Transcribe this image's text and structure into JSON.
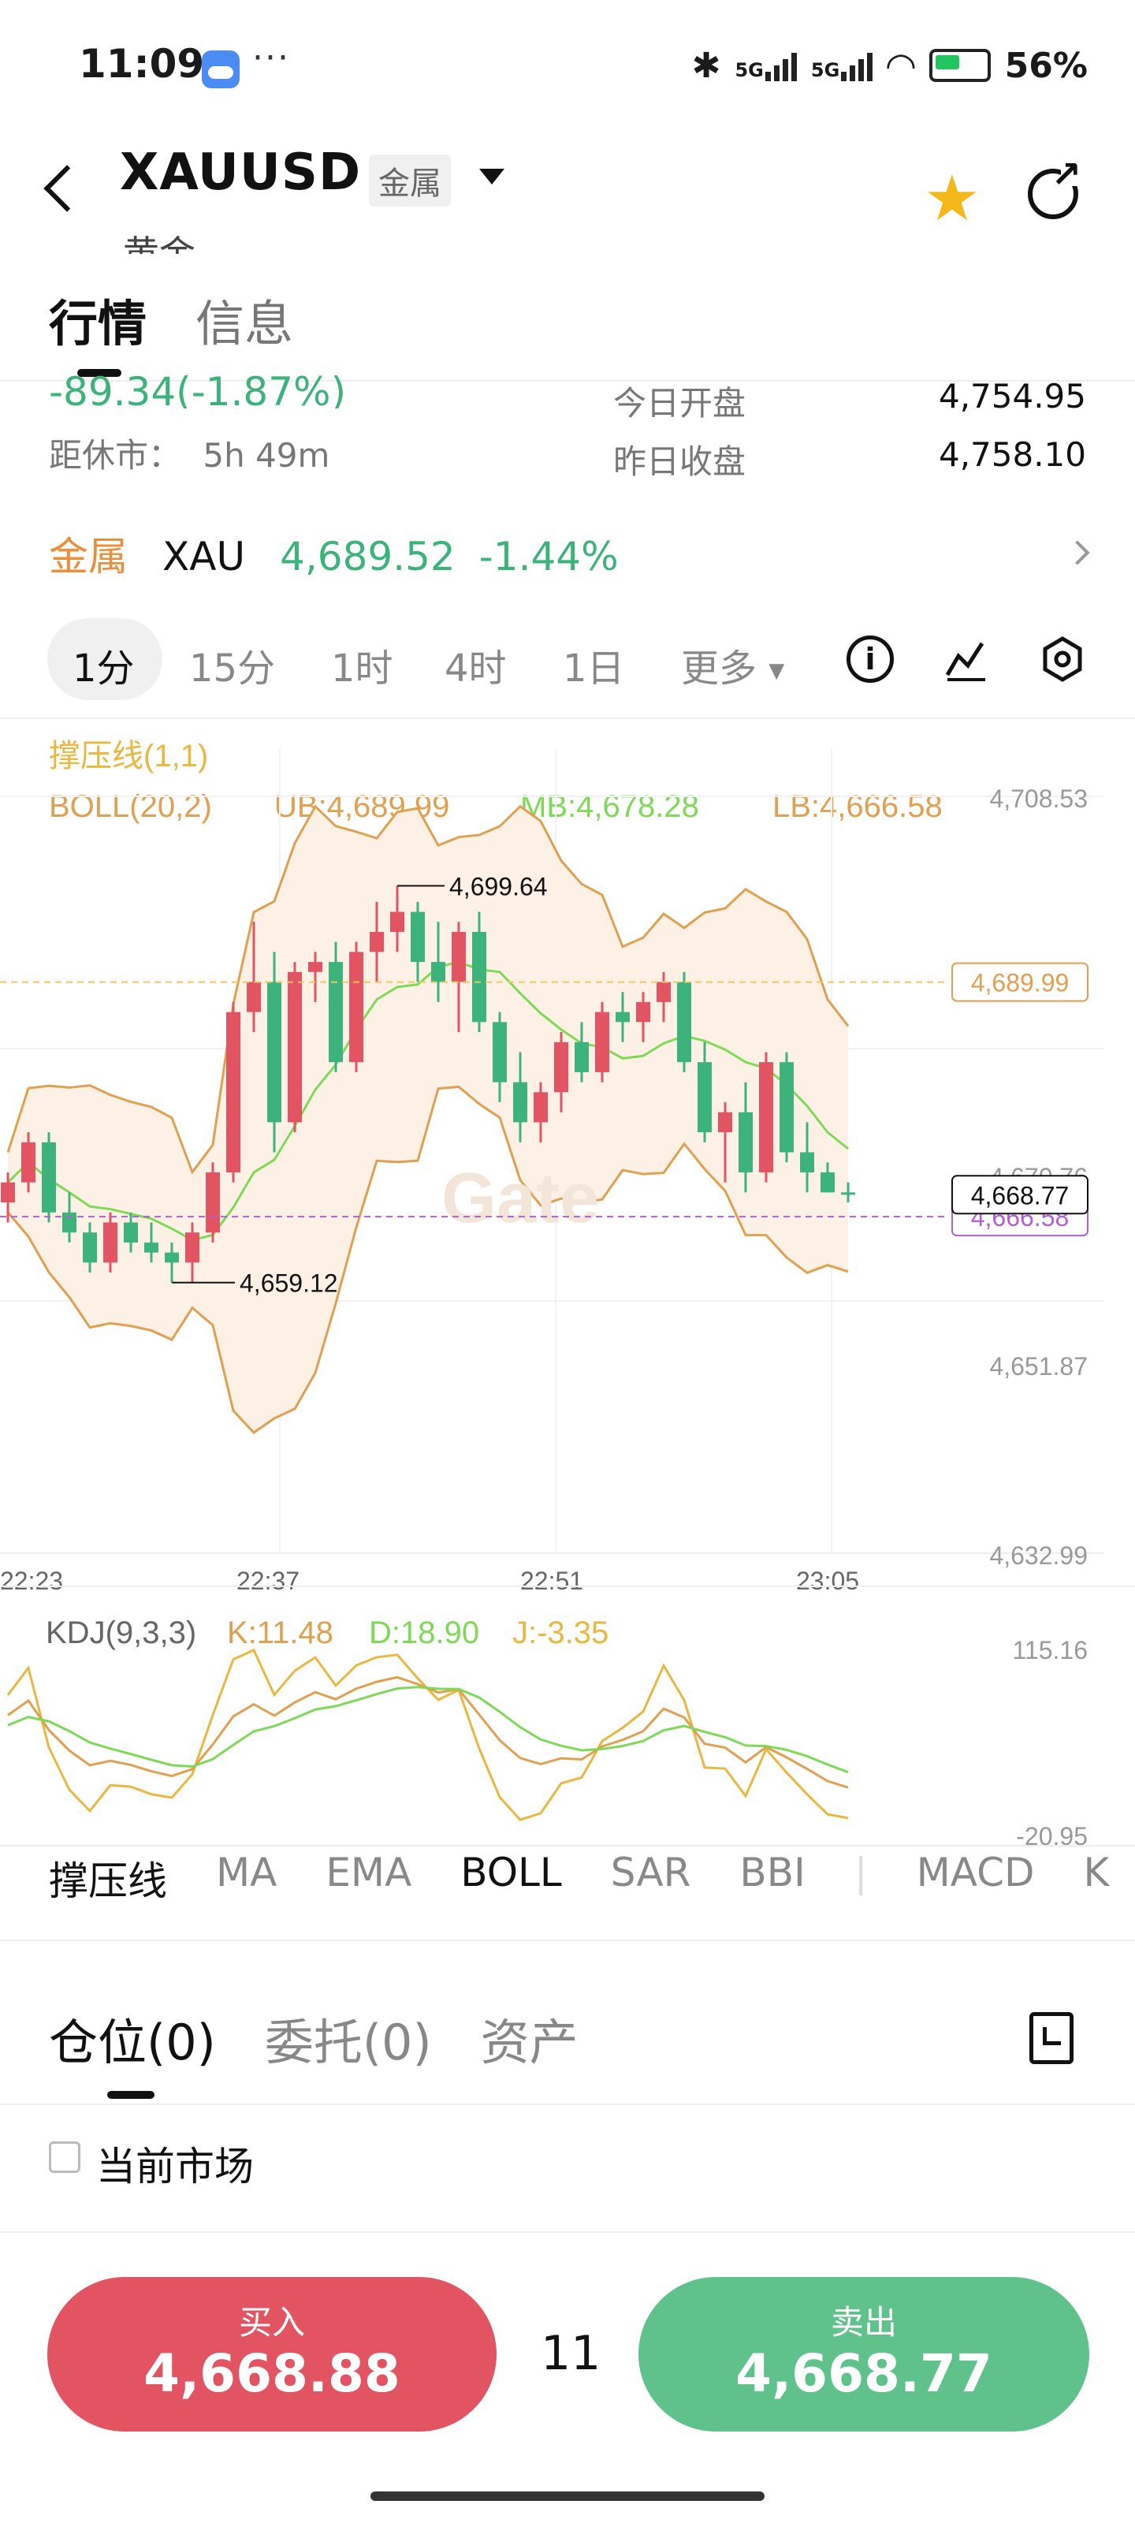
{
  "status_bar": {
    "time": "11:09",
    "dots": "···",
    "net1": "5G",
    "net2": "5G",
    "battery": "56%"
  },
  "header": {
    "symbol": "XAUUSD",
    "category_tag": "金属",
    "subtitle": "黄金",
    "tabs": [
      "行情",
      "信息"
    ]
  },
  "stats": {
    "change": "-89.34(-1.87%)",
    "countdown_label": "距休市：",
    "countdown_value": "5h 49m",
    "today_open_label": "今日开盘",
    "today_open_value": "4,754.95",
    "yesterday_close_label": "昨日收盘",
    "yesterday_close_value": "4,758.10"
  },
  "metal_row": {
    "category": "金属",
    "code": "XAU",
    "price": "4,689.52",
    "change": "-1.44%"
  },
  "timeframes": [
    "1分",
    "15分",
    "1时",
    "4时",
    "1日",
    "更多"
  ],
  "chart_data": {
    "type": "candlestick",
    "y_ticks": [
      "4,708.53",
      "4,670.76",
      "4,651.87",
      "4,632.99"
    ],
    "ylim": [
      4632.99,
      4708.53
    ],
    "x_ticks": [
      "22:23",
      "22:37",
      "22:51",
      "23:05"
    ],
    "indicator_title": "撑压线(1,1)",
    "boll_label": "BOLL(20,2)",
    "ub_label": "UB:4,689.99",
    "mb_label": "MB:4,678.28",
    "lb_label": "LB:4,666.58",
    "high_annotation": "4,699.64",
    "low_annotation": "4,659.12",
    "ub_tag": "4,689.99",
    "price_tag": "4,668.77",
    "purple_tag": "4,666.58",
    "ub_level": 4689.99,
    "price_level": 4668.77,
    "purple_level": 4666.58,
    "candles": [
      [
        4668,
        4671,
        4666,
        4670
      ],
      [
        4670,
        4675,
        4669,
        4674
      ],
      [
        4674,
        4675,
        4666,
        4667
      ],
      [
        4667,
        4669,
        4664,
        4665
      ],
      [
        4665,
        4666,
        4661,
        4662
      ],
      [
        4662,
        4667,
        4661,
        4666
      ],
      [
        4666,
        4667,
        4663,
        4664
      ],
      [
        4664,
        4666,
        4662,
        4663
      ],
      [
        4663,
        4664,
        4660,
        4662
      ],
      [
        4662,
        4666,
        4660,
        4665
      ],
      [
        4665,
        4672,
        4664,
        4671
      ],
      [
        4671,
        4688,
        4670,
        4687
      ],
      [
        4687,
        4696,
        4685,
        4690
      ],
      [
        4690,
        4693,
        4673,
        4676
      ],
      [
        4676,
        4692,
        4675,
        4691
      ],
      [
        4691,
        4693,
        4688,
        4692
      ],
      [
        4692,
        4694,
        4681,
        4682
      ],
      [
        4682,
        4694,
        4681,
        4693
      ],
      [
        4693,
        4698,
        4690,
        4695
      ],
      [
        4695,
        4699.6,
        4693,
        4697
      ],
      [
        4697,
        4698,
        4690,
        4692
      ],
      [
        4692,
        4696,
        4688,
        4690
      ],
      [
        4690,
        4696,
        4685,
        4695
      ],
      [
        4695,
        4697,
        4685,
        4686
      ],
      [
        4686,
        4687,
        4678,
        4680
      ],
      [
        4680,
        4683,
        4674,
        4676
      ],
      [
        4676,
        4680,
        4674,
        4679
      ],
      [
        4679,
        4685,
        4677,
        4684
      ],
      [
        4684,
        4686,
        4680,
        4681
      ],
      [
        4681,
        4688,
        4680,
        4687
      ],
      [
        4687,
        4689,
        4684,
        4686
      ],
      [
        4686,
        4689,
        4684,
        4688
      ],
      [
        4688,
        4691,
        4686,
        4690
      ],
      [
        4690,
        4691,
        4681,
        4682
      ],
      [
        4682,
        4684,
        4674,
        4675
      ],
      [
        4675,
        4678,
        4670,
        4677
      ],
      [
        4677,
        4680,
        4669,
        4671
      ],
      [
        4671,
        4683,
        4670,
        4682
      ],
      [
        4682,
        4683,
        4672,
        4673
      ],
      [
        4673,
        4676,
        4669,
        4671
      ],
      [
        4671,
        4672,
        4669,
        4669
      ],
      [
        4669,
        4670,
        4668,
        4668.8
      ]
    ],
    "kdj": {
      "label": "KDJ(9,3,3)",
      "k_label": "K:11.48",
      "d_label": "D:18.90",
      "j_label": "J:-3.35",
      "y_ticks": [
        "115.16",
        "-20.95"
      ],
      "ylim": [
        -20.95,
        115.16
      ]
    },
    "watermark": "Gate"
  },
  "indicators": [
    "撑压线",
    "MA",
    "EMA",
    "BOLL",
    "SAR",
    "BBI",
    "MACD",
    "K"
  ],
  "positions": {
    "tabs": [
      "仓位(0)",
      "委托(0)",
      "资产"
    ],
    "checkbox_label": "当前市场"
  },
  "trade": {
    "buy_label": "买入",
    "buy_price": "4,668.88",
    "spread": "11",
    "sell_label": "卖出",
    "sell_price": "4,668.77"
  },
  "colors": {
    "up": "#e25461",
    "down": "#3bb37a",
    "boll_upper": "#e0a050",
    "boll_mid": "#7ed957",
    "boll_fill": "#fdf1e6",
    "accent_orange": "#e8903c",
    "star": "#f4b818"
  }
}
